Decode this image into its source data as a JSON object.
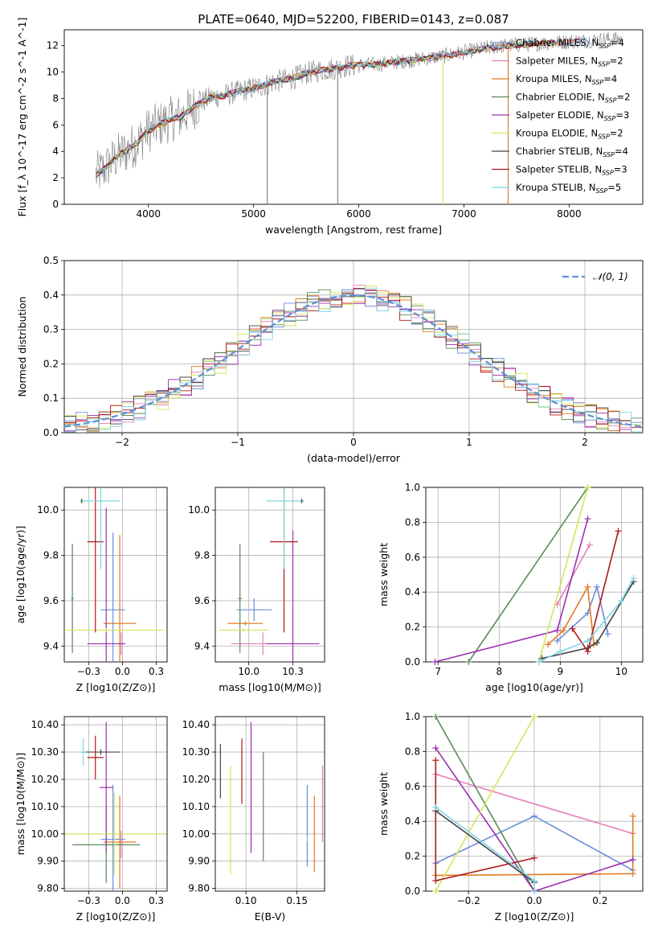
{
  "figure": {
    "title": "PLATE=0640, MJD=52200, FIBERID=0143, z=0.087"
  },
  "model_colors": {
    "Chabrier MILES": "#6a8fd8",
    "Salpeter MILES": "#e87dbb",
    "Kroupa MILES": "#e07b22",
    "Chabrier ELODIE": "#5a8a5a",
    "Salpeter ELODIE": "#9b30b0",
    "Kroupa ELODIE": "#d4e65a",
    "Chabrier STELIB": "#444444",
    "Salpeter STELIB": "#b01818",
    "Kroupa STELIB": "#7fd6e2"
  },
  "chart_data": [
    {
      "id": "spectrum",
      "type": "line",
      "title": "PLATE=0640, MJD=52200, FIBERID=0143, z=0.087",
      "xlabel": "wavelength [Angstrom, rest frame]",
      "ylabel": "Flux [f_λ 10^-17 erg cm^-2 s^-1 A^-1]",
      "xlim": [
        3200,
        8700
      ],
      "ylim": [
        0,
        13.2
      ],
      "xticks": [
        4000,
        5000,
        6000,
        7000,
        8000
      ],
      "yticks": [
        0,
        2,
        4,
        6,
        8,
        10,
        12
      ],
      "grid": false,
      "legend_position": "right",
      "legend": [
        "Chabrier MILES, N_SSP=4",
        "Salpeter MILES, N_SSP=2",
        "Kroupa MILES, N_SSP=4",
        "Chabrier ELODIE, N_SSP=2",
        "Salpeter ELODIE, N_SSP=3",
        "Kroupa ELODIE, N_SSP=2",
        "Chabrier STELIB, N_SSP=4",
        "Salpeter STELIB, N_SSP=3",
        "Kroupa STELIB, N_SSP=5"
      ],
      "continuum": {
        "x": [
          3500,
          3600,
          3700,
          3800,
          3900,
          4000,
          4100,
          4200,
          4300,
          4400,
          4500,
          4600,
          4700,
          4800,
          4900,
          5000,
          5100,
          5200,
          5300,
          5400,
          5500,
          5600,
          5700,
          5800,
          5900,
          6000,
          6200,
          6400,
          6600,
          6800,
          7000,
          7200,
          7400,
          7600,
          7800,
          8000,
          8200,
          8400
        ],
        "y": [
          2.2,
          2.8,
          3.6,
          4.1,
          4.7,
          5.6,
          6.0,
          6.4,
          6.6,
          7.2,
          7.7,
          8.1,
          8.2,
          8.4,
          8.6,
          8.8,
          9.0,
          9.3,
          9.4,
          9.6,
          9.9,
          10.1,
          10.2,
          10.3,
          10.5,
          10.5,
          10.6,
          10.8,
          11.0,
          11.2,
          11.5,
          11.8,
          12.0,
          12.1,
          12.2,
          12.3,
          12.4,
          12.5
        ]
      },
      "vertical_spikes": [
        {
          "x": 5130,
          "color": "#7f7f7f"
        },
        {
          "x": 5800,
          "color": "#7f7f7f"
        },
        {
          "x": 6800,
          "color": "#d4e65a"
        },
        {
          "x": 7420,
          "color": "#e07b22"
        }
      ]
    },
    {
      "id": "residual-histogram",
      "type": "line",
      "xlabel": "(data-model)/error",
      "ylabel": "Normed distribution",
      "xlim": [
        -2.5,
        2.5
      ],
      "ylim": [
        0,
        0.5
      ],
      "xticks": [
        -2,
        -1,
        0,
        1,
        2
      ],
      "yticks": [
        0.0,
        0.1,
        0.2,
        0.3,
        0.4,
        0.5
      ],
      "grid": true,
      "legend": [
        "𝒩(0, 1)"
      ],
      "legend_position": "top-right",
      "reference_curve": "gaussian mean 0 sigma 1",
      "bin_width": 0.1
    },
    {
      "id": "age-vs-Z",
      "type": "scatter",
      "xlabel": "Z [log10(Z/Z⊙)]",
      "ylabel": "age  [log10(age/yr)]",
      "xlim": [
        -0.43,
        0.33
      ],
      "ylim": [
        9.33,
        10.1
      ],
      "xticks": [
        -0.25,
        0.0,
        0.25
      ],
      "yticks": [
        9.4,
        9.6,
        9.8,
        10.0
      ],
      "grid": true,
      "points": [
        {
          "model": "Chabrier MILES",
          "x": -0.07,
          "xerr": 0.09,
          "y": 9.56,
          "yerr": 0.34
        },
        {
          "model": "Salpeter MILES",
          "x": -0.01,
          "xerr": 0.03,
          "y": 9.41,
          "yerr": 0.05
        },
        {
          "model": "Kroupa MILES",
          "x": -0.02,
          "xerr": 0.12,
          "y": 9.5,
          "yerr": 0.39
        },
        {
          "model": "Chabrier ELODIE",
          "x": -0.37,
          "xerr": 0.01,
          "y": 9.61,
          "yerr": 0.24
        },
        {
          "model": "Salpeter ELODIE",
          "x": -0.12,
          "xerr": 0.14,
          "y": 9.41,
          "yerr": 0.6
        },
        {
          "model": "Kroupa ELODIE",
          "x": -0.12,
          "xerr": 0.42,
          "y": 9.47,
          "yerr": 0.01
        },
        {
          "model": "Chabrier STELIB",
          "x": -0.3,
          "xerr": 0.01,
          "y": 10.04,
          "yerr": 0.01
        },
        {
          "model": "Salpeter STELIB",
          "x": -0.2,
          "xerr": 0.06,
          "y": 9.86,
          "yerr": 0.4
        },
        {
          "model": "Kroupa STELIB",
          "x": -0.16,
          "xerr": 0.14,
          "y": 10.04,
          "yerr": 0.3
        }
      ]
    },
    {
      "id": "age-vs-mass",
      "type": "scatter",
      "xlabel": "mass [log10(M/M⊙)]",
      "ylabel": "",
      "xlim": [
        9.81,
        10.43
      ],
      "ylim": [
        9.33,
        10.1
      ],
      "xticks": [
        10.0,
        10.25
      ],
      "yticks": [
        9.4,
        9.6,
        9.8,
        10.0
      ],
      "grid": true,
      "points": [
        {
          "model": "Chabrier MILES",
          "x": 10.03,
          "xerr": 0.1,
          "y": 9.56,
          "yerr": 0.05
        },
        {
          "model": "Salpeter MILES",
          "x": 10.08,
          "xerr": 0.18,
          "y": 9.41,
          "yerr": 0.05
        },
        {
          "model": "Kroupa MILES",
          "x": 9.98,
          "xerr": 0.1,
          "y": 9.5,
          "yerr": 0.01
        },
        {
          "model": "Chabrier ELODIE",
          "x": 9.95,
          "xerr": 0.01,
          "y": 9.61,
          "yerr": 0.24
        },
        {
          "model": "Salpeter ELODIE",
          "x": 10.25,
          "xerr": 0.15,
          "y": 9.41,
          "yerr": 0.5
        },
        {
          "model": "Kroupa ELODIE",
          "x": 9.97,
          "xerr": 0.14,
          "y": 9.47,
          "yerr": 0.01
        },
        {
          "model": "Chabrier STELIB",
          "x": 10.3,
          "xerr": 0.01,
          "y": 10.04,
          "yerr": 0.01
        },
        {
          "model": "Salpeter STELIB",
          "x": 10.2,
          "xerr": 0.08,
          "y": 9.86,
          "yerr": 0.4
        },
        {
          "model": "Kroupa STELIB",
          "x": 10.2,
          "xerr": 0.1,
          "y": 10.04,
          "yerr": 0.3
        }
      ]
    },
    {
      "id": "mass-weight-vs-age",
      "type": "line",
      "xlabel": "age  [log10(age/yr)]",
      "ylabel": "mass weight",
      "xlim": [
        6.8,
        10.35
      ],
      "ylim": [
        0,
        1
      ],
      "xticks": [
        7,
        8,
        9,
        10
      ],
      "yticks": [
        0.0,
        0.2,
        0.4,
        0.6,
        0.8,
        1.0
      ],
      "grid": true,
      "series": [
        {
          "model": "Chabrier MILES",
          "x": [
            8.95,
            9.45,
            9.6,
            9.78
          ],
          "y": [
            0.12,
            0.28,
            0.43,
            0.16
          ]
        },
        {
          "model": "Salpeter MILES",
          "x": [
            8.95,
            9.48
          ],
          "y": [
            0.33,
            0.67
          ]
        },
        {
          "model": "Kroupa MILES",
          "x": [
            8.8,
            9.05,
            9.45,
            9.55
          ],
          "y": [
            0.1,
            0.18,
            0.43,
            0.1
          ]
        },
        {
          "model": "Chabrier ELODIE",
          "x": [
            7.5,
            9.45
          ],
          "y": [
            0.0,
            1.0
          ]
        },
        {
          "model": "Salpeter ELODIE",
          "x": [
            6.95,
            8.95,
            9.45
          ],
          "y": [
            0.0,
            0.18,
            0.82
          ]
        },
        {
          "model": "Kroupa ELODIE",
          "x": [
            8.65,
            9.45
          ],
          "y": [
            0.0,
            1.0
          ]
        },
        {
          "model": "Chabrier STELIB",
          "x": [
            8.7,
            9.45,
            9.6,
            10.2
          ],
          "y": [
            0.02,
            0.08,
            0.11,
            0.46
          ]
        },
        {
          "model": "Salpeter STELIB",
          "x": [
            9.2,
            9.45,
            9.95
          ],
          "y": [
            0.19,
            0.06,
            0.75
          ]
        },
        {
          "model": "Kroupa STELIB",
          "x": [
            8.65,
            9.0,
            9.45,
            10.0,
            10.2
          ],
          "y": [
            0.0,
            0.06,
            0.12,
            0.35,
            0.48
          ]
        }
      ]
    },
    {
      "id": "mass-vs-Z",
      "type": "scatter",
      "xlabel": "Z [log10(Z/Z⊙)]",
      "ylabel": "mass [log10(M/M⊙)]",
      "xlim": [
        -0.43,
        0.33
      ],
      "ylim": [
        9.79,
        10.43
      ],
      "xticks": [
        -0.25,
        0.0,
        0.25
      ],
      "yticks": [
        9.8,
        9.9,
        10.0,
        10.1,
        10.2,
        10.3,
        10.4
      ],
      "grid": true,
      "points": [
        {
          "model": "Chabrier MILES",
          "x": -0.07,
          "xerr": 0.09,
          "y": 9.98,
          "yerr": 0.2
        },
        {
          "model": "Salpeter MILES",
          "x": -0.01,
          "xerr": 0.03,
          "y": 9.96,
          "yerr": 0.05
        },
        {
          "model": "Kroupa MILES",
          "x": -0.02,
          "xerr": 0.12,
          "y": 9.97,
          "yerr": 0.17
        },
        {
          "model": "Chabrier ELODIE",
          "x": -0.12,
          "xerr": 0.25,
          "y": 9.96,
          "yerr": 0.14
        },
        {
          "model": "Salpeter ELODIE",
          "x": -0.12,
          "xerr": 0.05,
          "y": 10.17,
          "yerr": 0.24
        },
        {
          "model": "Kroupa ELODIE",
          "x": -0.06,
          "xerr": 0.36,
          "y": 10.0,
          "yerr": 0.15
        },
        {
          "model": "Chabrier STELIB",
          "x": -0.16,
          "xerr": 0.14,
          "y": 10.3,
          "yerr": 0.01
        },
        {
          "model": "Salpeter STELIB",
          "x": -0.2,
          "xerr": 0.06,
          "y": 10.28,
          "yerr": 0.08
        },
        {
          "model": "Kroupa STELIB",
          "x": -0.29,
          "xerr": 0.02,
          "y": 10.3,
          "yerr": 0.05
        }
      ]
    },
    {
      "id": "mass-vs-ebv",
      "type": "scatter",
      "xlabel": "E(B-V)",
      "ylabel": "",
      "xlim": [
        0.07,
        0.177
      ],
      "ylim": [
        9.79,
        10.43
      ],
      "xticks": [
        0.1,
        0.15
      ],
      "yticks": [
        9.8,
        9.9,
        10.0,
        10.1,
        10.2,
        10.3,
        10.4
      ],
      "grid": true,
      "points": [
        {
          "model": "Chabrier MILES",
          "x": 0.16,
          "y": 10.03,
          "yerr": 0.15
        },
        {
          "model": "Salpeter MILES",
          "x": 0.175,
          "y": 10.11,
          "yerr": 0.14
        },
        {
          "model": "Kroupa MILES",
          "x": 0.167,
          "y": 10.0,
          "yerr": 0.14
        },
        {
          "model": "Chabrier ELODIE",
          "x": 0.117,
          "y": 10.1,
          "yerr": 0.2
        },
        {
          "model": "Salpeter ELODIE",
          "x": 0.105,
          "y": 10.17,
          "yerr": 0.24
        },
        {
          "model": "Kroupa ELODIE",
          "x": 0.085,
          "y": 10.05,
          "yerr": 0.2
        },
        {
          "model": "Chabrier STELIB",
          "x": 0.075,
          "y": 10.23,
          "yerr": 0.1
        },
        {
          "model": "Salpeter STELIB",
          "x": 0.096,
          "y": 10.23,
          "yerr": 0.12
        },
        {
          "model": "Kroupa STELIB",
          "x": 0.16,
          "y": 9.98,
          "yerr": 0.01
        }
      ]
    },
    {
      "id": "mass-weight-vs-Z",
      "type": "line",
      "xlabel": "Z [log10(Z/Z⊙)]",
      "ylabel": "mass weight",
      "xlim": [
        -0.33,
        0.33
      ],
      "ylim": [
        0,
        1
      ],
      "xticks": [
        -0.2,
        0.0,
        0.2
      ],
      "yticks": [
        0.0,
        0.2,
        0.4,
        0.6,
        0.8,
        1.0
      ],
      "grid": true,
      "series": [
        {
          "model": "Chabrier MILES",
          "x": [
            -0.3,
            0.0,
            0.3
          ],
          "y": [
            0.16,
            0.43,
            0.12
          ]
        },
        {
          "model": "Salpeter MILES",
          "x": [
            -0.3,
            0.3
          ],
          "y": [
            0.67,
            0.33
          ]
        },
        {
          "model": "Kroupa MILES",
          "x": [
            -0.3,
            0.3,
            0.3
          ],
          "y": [
            0.09,
            0.1,
            0.43
          ]
        },
        {
          "model": "Chabrier ELODIE",
          "x": [
            -0.3,
            0.0
          ],
          "y": [
            1.0,
            0.0
          ]
        },
        {
          "model": "Salpeter ELODIE",
          "x": [
            -0.3,
            0.0,
            0.3
          ],
          "y": [
            0.82,
            0.0,
            0.18
          ]
        },
        {
          "model": "Kroupa ELODIE",
          "x": [
            -0.3,
            0.0
          ],
          "y": [
            0.0,
            1.0
          ]
        },
        {
          "model": "Chabrier STELIB",
          "x": [
            -0.3,
            0.0
          ],
          "y": [
            0.46,
            0.05
          ]
        },
        {
          "model": "Salpeter STELIB",
          "x": [
            -0.3,
            -0.3,
            0.0
          ],
          "y": [
            0.75,
            0.06,
            0.19
          ]
        },
        {
          "model": "Kroupa STELIB",
          "x": [
            -0.3,
            0.0,
            0.0
          ],
          "y": [
            0.48,
            0.06,
            0.0
          ]
        }
      ]
    }
  ]
}
